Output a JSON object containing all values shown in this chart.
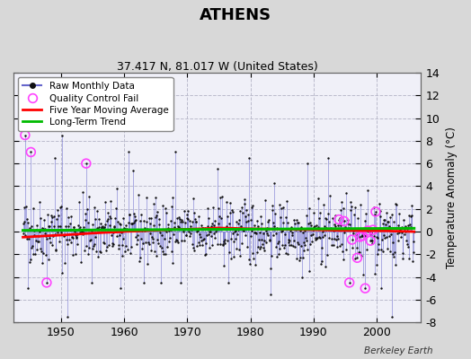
{
  "title": "ATHENS",
  "subtitle": "37.417 N, 81.017 W (United States)",
  "ylabel": "Temperature Anomaly (°C)",
  "credit": "Berkeley Earth",
  "start_year": 1944,
  "end_year": 2005,
  "ylim": [
    -8,
    14
  ],
  "yticks": [
    -8,
    -6,
    -4,
    -2,
    0,
    2,
    4,
    6,
    8,
    10,
    12,
    14
  ],
  "xticks": [
    1950,
    1960,
    1970,
    1980,
    1990,
    2000
  ],
  "background_color": "#d8d8d8",
  "plot_background": "#f0f0f8",
  "grid_color": "#bbbbcc",
  "raw_line_color": "#6666cc",
  "raw_dot_color": "#111111",
  "qc_fail_color": "#ff44ff",
  "moving_avg_color": "#ff0000",
  "trend_color": "#00bb00",
  "seed": 42
}
